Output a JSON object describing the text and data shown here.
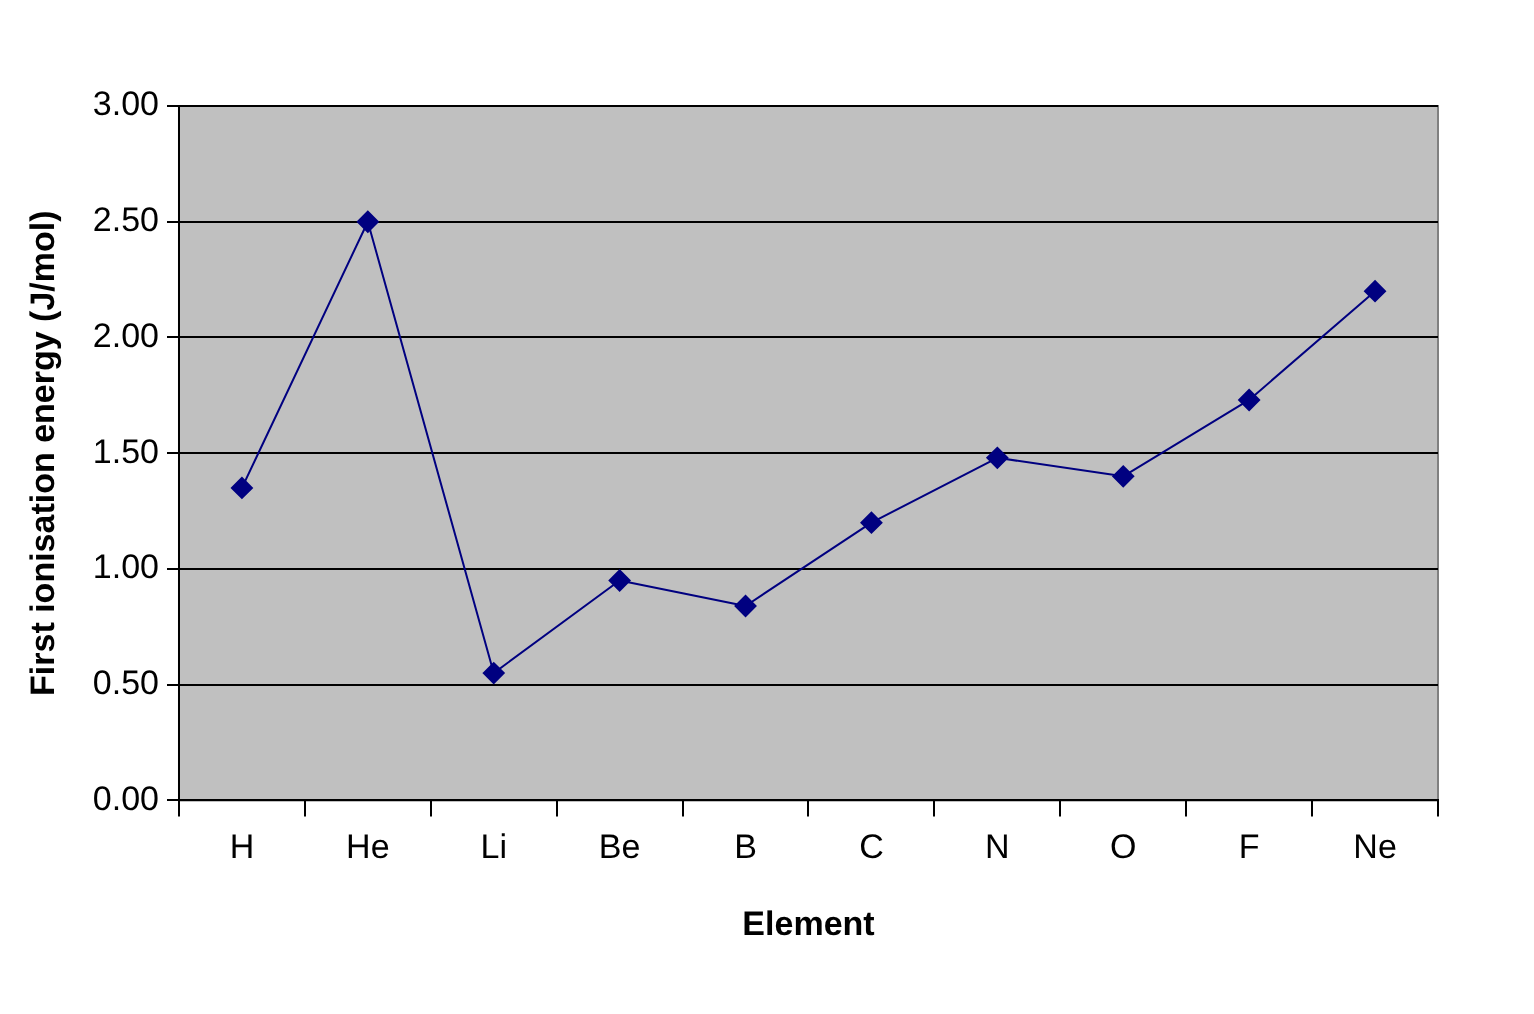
{
  "chart_data": {
    "type": "line",
    "xlabel": "Element",
    "ylabel": "First ionisation energy (J/mol)",
    "categories": [
      "H",
      "He",
      "Li",
      "Be",
      "B",
      "C",
      "N",
      "O",
      "F",
      "Ne"
    ],
    "series": [
      {
        "color": "#000080",
        "values": [
          1.35,
          2.5,
          0.55,
          0.95,
          0.84,
          1.2,
          1.48,
          1.4,
          1.73,
          2.2
        ]
      }
    ],
    "ylim": [
      0,
      3
    ],
    "yticks": [
      {
        "value": 0,
        "label": "0.00"
      },
      {
        "value": 0.5,
        "label": "0.50"
      },
      {
        "value": 1,
        "label": "1.00"
      },
      {
        "value": 1.5,
        "label": "1.50"
      },
      {
        "value": 2,
        "label": "2.00"
      },
      {
        "value": 2.5,
        "label": "2.50"
      },
      {
        "value": 3,
        "label": "3.00"
      }
    ],
    "grid": "y",
    "legend": false,
    "marker": "diamond",
    "line_style": "solid"
  }
}
